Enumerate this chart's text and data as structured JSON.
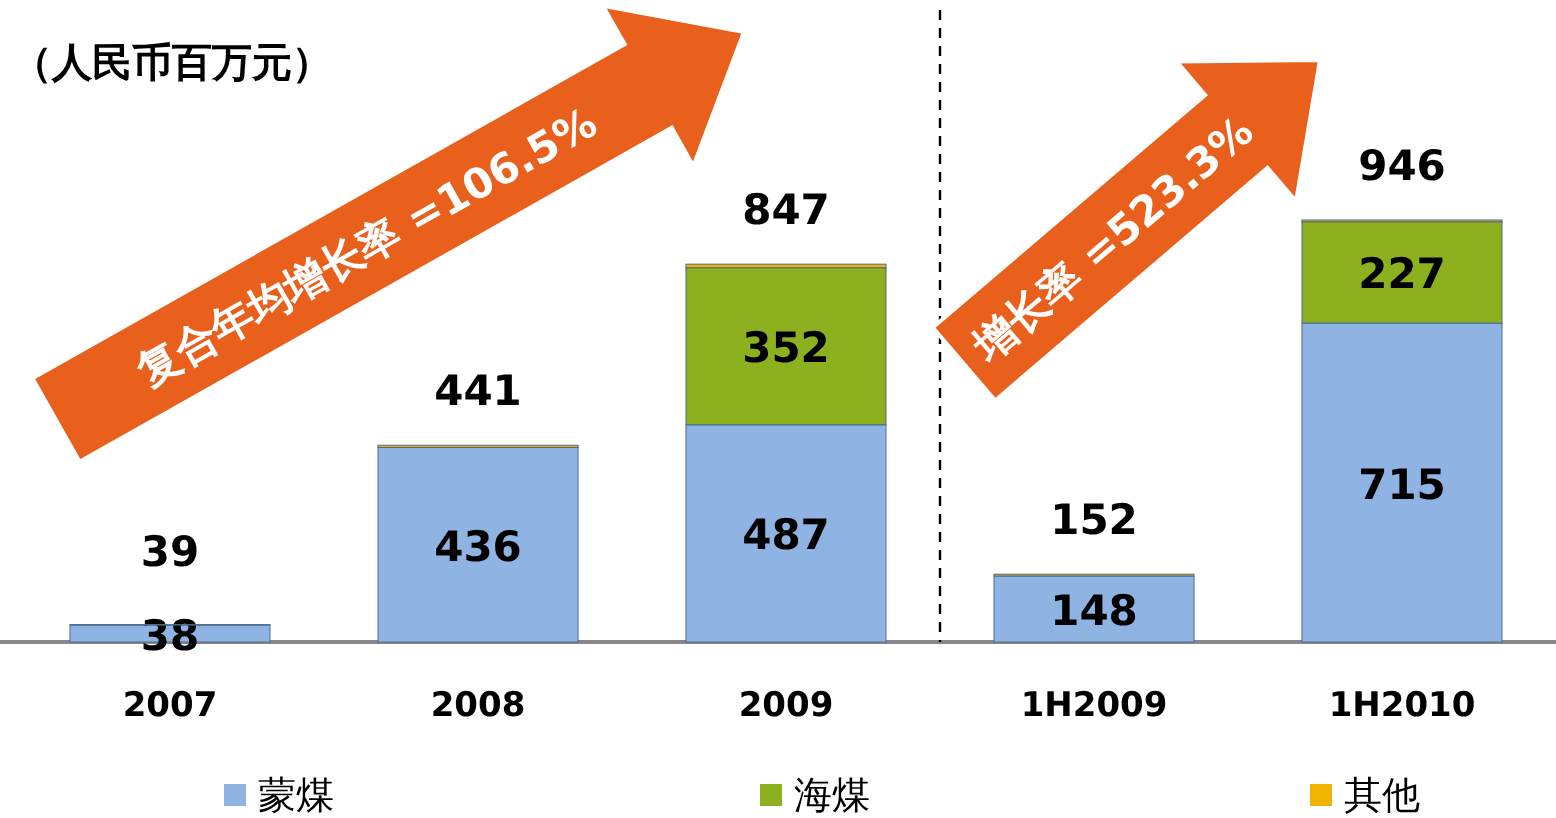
{
  "chart_data": {
    "type": "bar",
    "stacked": true,
    "title": "（人民币百万元）",
    "categories": [
      "2007",
      "2008",
      "2009",
      "1H2009",
      "1H2010"
    ],
    "series": [
      {
        "name": "蒙煤",
        "color": "#8fb4e3",
        "values": [
          38,
          436,
          487,
          148,
          715
        ],
        "value_labels": [
          "38",
          "436",
          "487",
          "148",
          "715"
        ]
      },
      {
        "name": "海煤",
        "color": "#8db01e",
        "values": [
          null,
          null,
          352,
          null,
          227
        ],
        "value_labels": [
          null,
          null,
          "352",
          null,
          "227"
        ]
      },
      {
        "name": "其他",
        "color": "#f0b400",
        "values": [
          1,
          5,
          8,
          4,
          4
        ]
      }
    ],
    "totals": [
      "39",
      "441",
      "847",
      "152",
      "946"
    ],
    "annotations": [
      "复合年均增长率 =106.5%",
      "增长率 =523.3%"
    ],
    "legend": "bottom"
  }
}
